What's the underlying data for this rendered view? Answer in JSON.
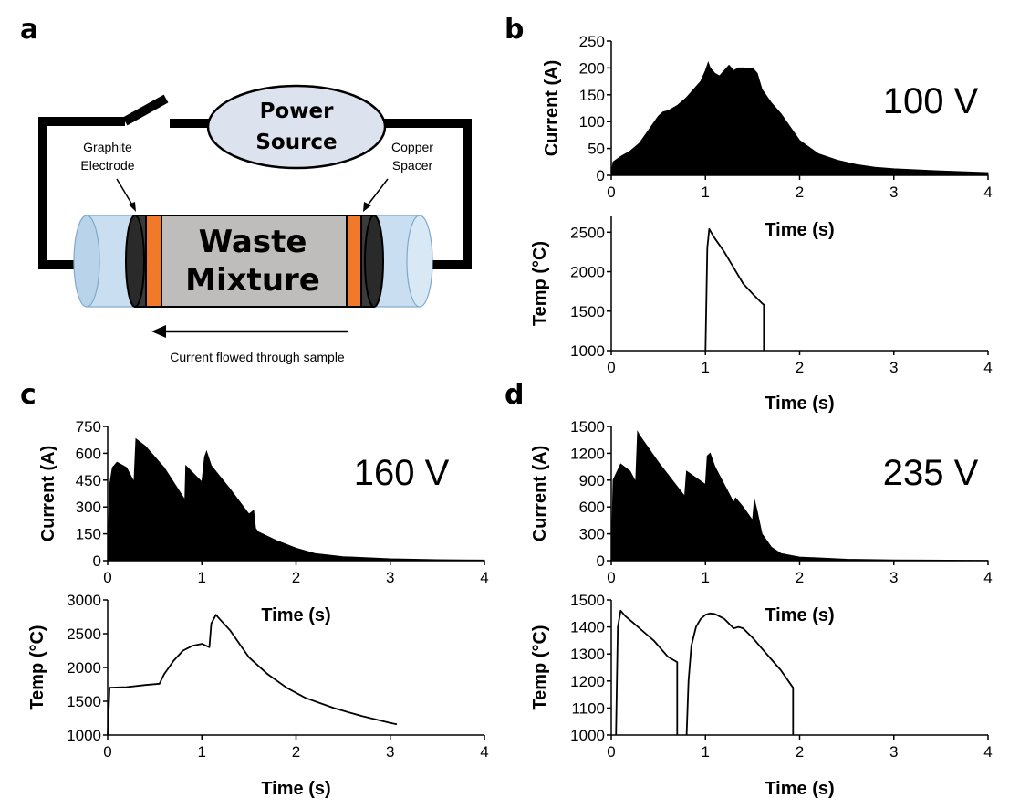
{
  "panels": {
    "a": "a",
    "b": "b",
    "c": "c",
    "d": "d"
  },
  "diagram": {
    "power_source_line1": "Power",
    "power_source_line2": "Source",
    "graphite_line1": "Graphite",
    "graphite_line2": "Electrode",
    "copper_line1": "Copper",
    "copper_line2": "Spacer",
    "mixture_line1": "Waste",
    "mixture_line2": "Mixture",
    "current_caption": "Current flowed through sample",
    "colors": {
      "tube": "#c9def0",
      "electrode": "#3a3a3a",
      "spacer": "#f07a2a",
      "mixture": "#bfbcbc",
      "power": "#dde3ee"
    }
  },
  "chart_data": [
    {
      "id": "b-current",
      "type": "area",
      "annotation": "100 V",
      "xlabel": "Time (s)",
      "ylabel": "Current (A)",
      "xlim": [
        0,
        4
      ],
      "ylim": [
        0,
        250
      ],
      "xticks": [
        "0",
        "1",
        "2",
        "3",
        "4"
      ],
      "yticks": [
        "0",
        "50",
        "100",
        "150",
        "200",
        "250"
      ],
      "x": [
        0,
        0.02,
        0.1,
        0.2,
        0.3,
        0.4,
        0.5,
        0.55,
        0.6,
        0.7,
        0.8,
        0.9,
        0.95,
        1.0,
        1.03,
        1.05,
        1.1,
        1.15,
        1.2,
        1.25,
        1.3,
        1.35,
        1.4,
        1.45,
        1.5,
        1.55,
        1.6,
        1.7,
        1.8,
        1.9,
        2.0,
        2.2,
        2.4,
        2.6,
        2.8,
        3.0,
        3.5,
        4.0
      ],
      "y": [
        5,
        25,
        35,
        45,
        60,
        85,
        110,
        118,
        120,
        130,
        145,
        165,
        175,
        195,
        210,
        200,
        190,
        185,
        195,
        205,
        195,
        200,
        200,
        198,
        200,
        190,
        160,
        135,
        115,
        90,
        65,
        40,
        28,
        20,
        15,
        12,
        8,
        5
      ]
    },
    {
      "id": "b-temp",
      "type": "line",
      "xlabel": "Time (s)",
      "ylabel": "Temp (°C)",
      "xlim": [
        0,
        4
      ],
      "ylim": [
        1000,
        2700
      ],
      "xticks": [
        "0",
        "1",
        "2",
        "3",
        "4"
      ],
      "yticks": [
        "1000",
        "1500",
        "2000",
        "2500"
      ],
      "x": [
        1.0,
        1.02,
        1.04,
        1.06,
        1.1,
        1.2,
        1.3,
        1.4,
        1.5,
        1.6,
        1.62,
        1.62
      ],
      "y": [
        1000,
        2300,
        2540,
        2500,
        2420,
        2250,
        2050,
        1850,
        1720,
        1600,
        1580,
        1000
      ]
    },
    {
      "id": "c-current",
      "type": "area",
      "annotation": "160 V",
      "xlabel": "Time (s)",
      "ylabel": "Current (A)",
      "xlim": [
        0,
        4
      ],
      "ylim": [
        0,
        750
      ],
      "xticks": [
        "0",
        "1",
        "2",
        "3",
        "4"
      ],
      "yticks": [
        "0",
        "150",
        "300",
        "450",
        "600",
        "750"
      ],
      "x": [
        0,
        0.02,
        0.05,
        0.1,
        0.2,
        0.28,
        0.3,
        0.4,
        0.6,
        0.82,
        0.83,
        1.0,
        1.03,
        1.05,
        1.1,
        1.3,
        1.5,
        1.55,
        1.57,
        1.6,
        1.8,
        2.0,
        2.2,
        2.5,
        3.0,
        3.5,
        4.0
      ],
      "y": [
        0,
        420,
        520,
        550,
        520,
        440,
        680,
        640,
        520,
        340,
        530,
        440,
        580,
        610,
        530,
        400,
        260,
        280,
        180,
        160,
        110,
        70,
        40,
        22,
        10,
        5,
        3
      ]
    },
    {
      "id": "c-temp",
      "type": "line",
      "xlabel": "Time (s)",
      "ylabel": "Temp (°C)",
      "xlim": [
        0,
        4
      ],
      "ylim": [
        1000,
        3000
      ],
      "xticks": [
        "0",
        "1",
        "2",
        "3",
        "4"
      ],
      "yticks": [
        "1000",
        "1500",
        "2000",
        "2500",
        "3000"
      ],
      "x": [
        0,
        0.02,
        0.2,
        0.4,
        0.55,
        0.6,
        0.7,
        0.8,
        0.9,
        1.0,
        1.08,
        1.1,
        1.15,
        1.2,
        1.3,
        1.4,
        1.5,
        1.7,
        1.9,
        2.1,
        2.4,
        2.7,
        3.0,
        3.07
      ],
      "y": [
        1000,
        1700,
        1710,
        1740,
        1760,
        1900,
        2100,
        2250,
        2320,
        2350,
        2300,
        2650,
        2780,
        2700,
        2550,
        2350,
        2150,
        1900,
        1700,
        1550,
        1400,
        1280,
        1180,
        1160
      ]
    },
    {
      "id": "d-current",
      "type": "area",
      "annotation": "235 V",
      "xlabel": "Time (s)",
      "ylabel": "Current (A)",
      "xlim": [
        0,
        4
      ],
      "ylim": [
        0,
        1500
      ],
      "xticks": [
        "0",
        "1",
        "2",
        "3",
        "4"
      ],
      "yticks": [
        "0",
        "300",
        "600",
        "900",
        "1200",
        "1500"
      ],
      "x": [
        0,
        0.02,
        0.1,
        0.2,
        0.26,
        0.28,
        0.3,
        0.5,
        0.78,
        0.8,
        1.0,
        1.02,
        1.05,
        1.1,
        1.3,
        1.32,
        1.4,
        1.5,
        1.52,
        1.55,
        1.6,
        1.7,
        1.8,
        2.0,
        2.5,
        3.0,
        4.0
      ],
      "y": [
        0,
        900,
        1080,
        1000,
        880,
        1440,
        1400,
        1100,
        720,
        1000,
        850,
        1170,
        1200,
        1050,
        650,
        700,
        600,
        450,
        680,
        550,
        300,
        150,
        80,
        40,
        15,
        8,
        3
      ]
    },
    {
      "id": "d-temp",
      "type": "line",
      "xlabel": "Time (s)",
      "ylabel": "Temp (°C)",
      "xlim": [
        0,
        4
      ],
      "ylim": [
        1000,
        1500
      ],
      "xticks": [
        "0",
        "1",
        "2",
        "3",
        "4"
      ],
      "yticks": [
        "1000",
        "1100",
        "1200",
        "1300",
        "1400",
        "1500"
      ],
      "segments": [
        {
          "x": [
            0.05,
            0.07,
            0.1,
            0.15,
            0.25,
            0.35,
            0.45,
            0.55,
            0.6,
            0.7,
            0.7
          ],
          "y": [
            1000,
            1400,
            1460,
            1440,
            1410,
            1380,
            1350,
            1310,
            1290,
            1270,
            1000
          ]
        },
        {
          "x": [
            0.8,
            0.82,
            0.85,
            0.9,
            0.95,
            1.0,
            1.05,
            1.1,
            1.2,
            1.3,
            1.35,
            1.4,
            1.5,
            1.6,
            1.7,
            1.8,
            1.93,
            1.93
          ],
          "y": [
            1000,
            1200,
            1330,
            1400,
            1430,
            1445,
            1450,
            1448,
            1430,
            1395,
            1400,
            1395,
            1360,
            1320,
            1280,
            1240,
            1175,
            1000
          ]
        }
      ]
    }
  ]
}
